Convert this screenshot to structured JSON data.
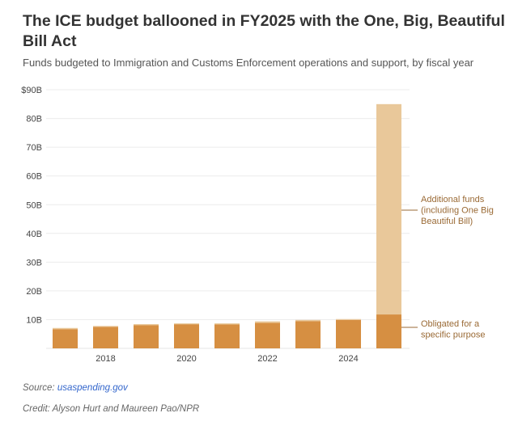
{
  "title": "The ICE budget ballooned in FY2025 with the One, Big, Beautiful Bill Act",
  "subtitle": "Funds budgeted to Immigration and Customs Enforcement operations and support, by fiscal year",
  "source_label": "Source:",
  "source_link": "usaspending.gov",
  "credit": "Credit: Alyson Hurt and Maureen Pao/NPR",
  "colors": {
    "obligated": "#d68f42",
    "additional": "#e9c89a",
    "annotation": "#9a6a35"
  },
  "chart_data": {
    "type": "bar",
    "stacked": true,
    "x": [
      2017,
      2018,
      2019,
      2020,
      2021,
      2022,
      2023,
      2024,
      2025
    ],
    "x_tick_labels": [
      "2018",
      "2020",
      "2022",
      "2024"
    ],
    "x_ticks": [
      2018,
      2020,
      2022,
      2024
    ],
    "y_tick_labels": [
      "10B",
      "20B",
      "30B",
      "40B",
      "50B",
      "60B",
      "70B",
      "80B",
      "$90B"
    ],
    "y_ticks": [
      10,
      20,
      30,
      40,
      50,
      60,
      70,
      80,
      90
    ],
    "ylim": [
      0,
      90
    ],
    "grid": true,
    "series": [
      {
        "name": "Obligated for a specific purpose",
        "values": [
          6.7,
          7.5,
          8.1,
          8.4,
          8.3,
          8.9,
          9.5,
          9.9,
          11.8
        ]
      },
      {
        "name": "Additional funds (including One Big Beautiful Bill)",
        "values": [
          0.4,
          0.3,
          0.35,
          0.3,
          0.4,
          0.5,
          0.4,
          0.3,
          73.2
        ]
      }
    ],
    "annotations": [
      {
        "series": 1,
        "lines": [
          "Additional funds",
          "(including One Big",
          "Beautiful Bill)"
        ]
      },
      {
        "series": 0,
        "lines": [
          "Obligated for a",
          "specific purpose"
        ]
      }
    ]
  }
}
